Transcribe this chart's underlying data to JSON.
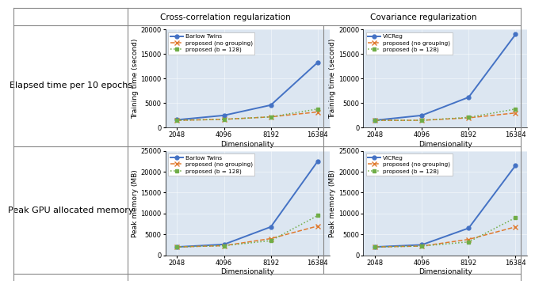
{
  "x": [
    2048,
    4096,
    8192,
    16384
  ],
  "col_headers": [
    "Cross-correlation regularization",
    "Covariance regularization"
  ],
  "row_headers": [
    "Elapsed time per 10 epochs",
    "Peak GPU allocated memory"
  ],
  "time_cc_barlow": [
    1600,
    2500,
    4600,
    13300
  ],
  "time_cc_no_group": [
    1500,
    1700,
    2200,
    3200
  ],
  "time_cc_b128": [
    1500,
    1700,
    2200,
    3800
  ],
  "time_cov_vicreg": [
    1500,
    2500,
    6200,
    19000
  ],
  "time_cov_no_group": [
    1500,
    1500,
    2000,
    3000
  ],
  "time_cov_b128": [
    1500,
    1500,
    2100,
    3800
  ],
  "mem_cc_barlow": [
    2000,
    2600,
    6800,
    22500
  ],
  "mem_cc_no_group": [
    2000,
    2300,
    4000,
    7000
  ],
  "mem_cc_b128": [
    2000,
    2300,
    3500,
    9500
  ],
  "mem_cov_vicreg": [
    2000,
    2500,
    6500,
    21500
  ],
  "mem_cov_no_group": [
    2000,
    2200,
    3800,
    6800
  ],
  "mem_cov_b128": [
    2000,
    2200,
    3200,
    9000
  ],
  "time_ylim": [
    0,
    20000
  ],
  "time_yticks": [
    0,
    5000,
    10000,
    15000,
    20000
  ],
  "mem_ylim": [
    0,
    25000
  ],
  "mem_yticks": [
    0,
    5000,
    10000,
    15000,
    20000,
    25000
  ],
  "color_blue": "#4472c4",
  "color_orange": "#e07a2f",
  "color_green": "#70ad47",
  "bg_color": "#dce6f1",
  "xlabel": "Dimensionality",
  "ylabel_time": "Training time (second)",
  "ylabel_mem": "Peak memory (MB)",
  "label_barlow": "Barlow Twins",
  "label_vicreg": "VICReg",
  "label_no_group": "proposed (no grouping)",
  "label_b128": "proposed (b = 128)"
}
